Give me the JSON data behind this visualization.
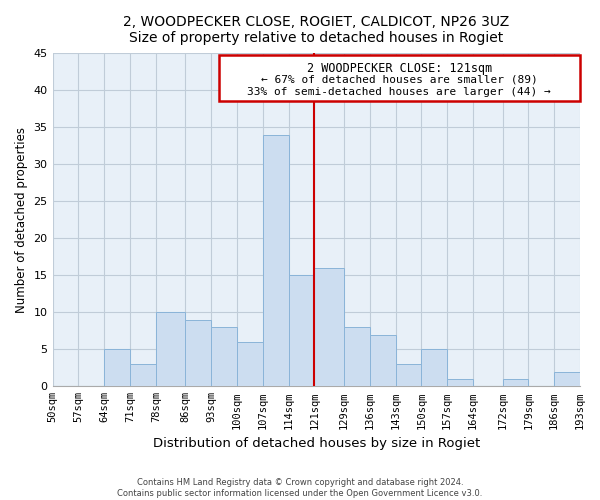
{
  "title": "2, WOODPECKER CLOSE, ROGIET, CALDICOT, NP26 3UZ",
  "subtitle": "Size of property relative to detached houses in Rogiet",
  "xlabel": "Distribution of detached houses by size in Rogiet",
  "ylabel": "Number of detached properties",
  "bin_edges": [
    50,
    57,
    64,
    71,
    78,
    86,
    93,
    100,
    107,
    114,
    121,
    129,
    136,
    143,
    150,
    157,
    164,
    172,
    179,
    186,
    193
  ],
  "bin_labels": [
    "50sqm",
    "57sqm",
    "64sqm",
    "71sqm",
    "78sqm",
    "86sqm",
    "93sqm",
    "100sqm",
    "107sqm",
    "114sqm",
    "121sqm",
    "129sqm",
    "136sqm",
    "143sqm",
    "150sqm",
    "157sqm",
    "164sqm",
    "172sqm",
    "179sqm",
    "186sqm",
    "193sqm"
  ],
  "counts": [
    0,
    0,
    5,
    3,
    10,
    9,
    8,
    6,
    34,
    15,
    16,
    8,
    7,
    3,
    5,
    1,
    0,
    1,
    0,
    2
  ],
  "bar_color": "#ccddf0",
  "bar_edge_color": "#8ab4d8",
  "property_line_x": 121,
  "property_line_color": "#cc0000",
  "annotation_title": "2 WOODPECKER CLOSE: 121sqm",
  "annotation_line1": "← 67% of detached houses are smaller (89)",
  "annotation_line2": "33% of semi-detached houses are larger (44) →",
  "annotation_box_color": "#ffffff",
  "annotation_box_edge": "#cc0000",
  "ylim": [
    0,
    45
  ],
  "yticks": [
    0,
    5,
    10,
    15,
    20,
    25,
    30,
    35,
    40,
    45
  ],
  "footer1": "Contains HM Land Registry data © Crown copyright and database right 2024.",
  "footer2": "Contains public sector information licensed under the Open Government Licence v3.0.",
  "bg_color": "#ffffff",
  "plot_bg_color": "#e8f0f8",
  "grid_color": "#c0ccd8"
}
